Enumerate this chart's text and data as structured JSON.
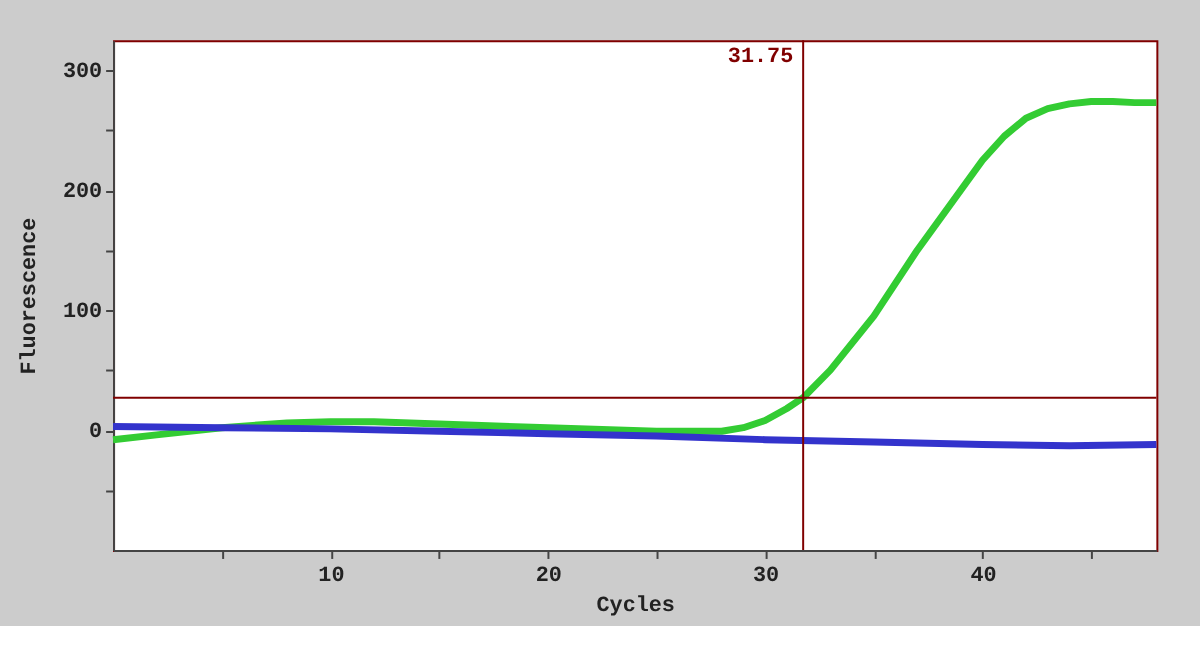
{
  "chart_data": {
    "type": "line",
    "xlabel": "Cycles",
    "ylabel": "Fluorescence",
    "xlim": [
      0,
      48
    ],
    "ylim": [
      -100,
      325
    ],
    "xticks": [
      {
        "value": 5,
        "label": null
      },
      10,
      {
        "value": 15,
        "label": null
      },
      20,
      {
        "value": 25,
        "label": null
      },
      30,
      {
        "value": 35,
        "label": null
      },
      40,
      {
        "value": 45,
        "label": null
      }
    ],
    "yticks": [
      {
        "value": -50,
        "label": null
      },
      0,
      {
        "value": 50,
        "label": null
      },
      100,
      {
        "value": 150,
        "label": null
      },
      200,
      {
        "value": 250,
        "label": null
      },
      300
    ],
    "series": [
      {
        "color": "#33cc33",
        "x": [
          0,
          2,
          5,
          8,
          10,
          12,
          15,
          20,
          25,
          28,
          29,
          30,
          31,
          31.75,
          33,
          35,
          37,
          39,
          40,
          41,
          42,
          43,
          44,
          45,
          46,
          47,
          48
        ],
        "values": [
          -8,
          -4,
          2,
          6,
          7,
          7,
          5,
          2,
          -1,
          -1,
          2,
          8,
          18,
          27,
          50,
          95,
          150,
          200,
          225,
          245,
          260,
          268,
          272,
          274,
          274,
          273,
          273
        ]
      },
      {
        "color": "#3333cc",
        "x": [
          0,
          5,
          10,
          15,
          20,
          25,
          30,
          35,
          40,
          44,
          48
        ],
        "values": [
          3,
          2,
          1,
          -1,
          -3,
          -5,
          -8,
          -10,
          -12,
          -13,
          -12
        ]
      }
    ],
    "ref_lines": [
      {
        "axis": "y",
        "value": 27,
        "color": "#800000"
      },
      {
        "axis": "x",
        "value": 31.75,
        "label": "31.75",
        "color": "#800000"
      }
    ],
    "marker": "none",
    "line_style": "solid",
    "grid": false,
    "legend": false
  }
}
